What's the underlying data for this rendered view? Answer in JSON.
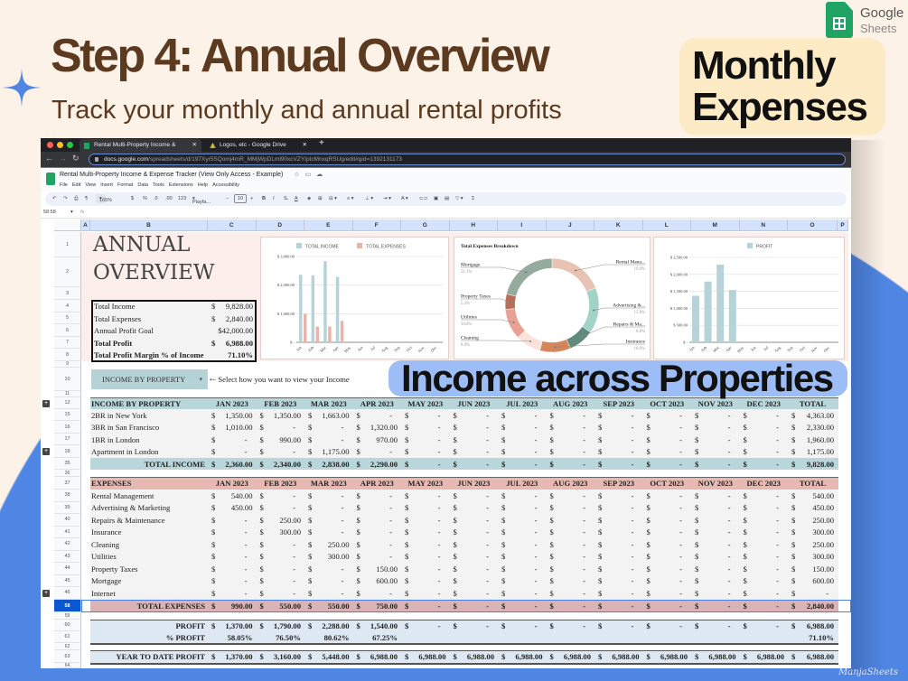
{
  "header": {
    "title": "Step 4: Annual Overview",
    "subtitle": "Track your monthly and annual rental profits",
    "logo": {
      "line1": "Google",
      "line2": "Sheets"
    }
  },
  "browser": {
    "tabs": [
      {
        "label": "Rental Multi-Property Income &",
        "icon": "sheets-icon"
      },
      {
        "label": "Logos, etc - Google Drive",
        "icon": "drive-icon"
      }
    ],
    "new_tab": "+",
    "url_host": "docs.google.com",
    "url_path": "/spreadsheets/d/197Xyr5SQomj4mR_MMjWpDLml90xcVZYIpIcMnxqRSUg/edit#gid=1392131173"
  },
  "doc": {
    "title": "Rental Multi-Property Income & Expense Tracker (View Only Access - Example)",
    "menu": [
      "File",
      "Edit",
      "View",
      "Insert",
      "Format",
      "Data",
      "Tools",
      "Extensions",
      "Help",
      "Accessibility"
    ]
  },
  "toolbar": {
    "zoom": "165%",
    "currency": "$",
    "percent": "%",
    "dec_less": ".0",
    "dec_more": ".00",
    "format": "123",
    "font": "Playfa...",
    "font_size": "10",
    "minus": "−",
    "plus": "+",
    "bold": "B",
    "italic": "I",
    "text_color": "A"
  },
  "formula_bar": {
    "cell_ref": "58:58",
    "fx": "fx"
  },
  "columns": [
    "A",
    "B",
    "C",
    "D",
    "E",
    "F",
    "G",
    "H",
    "I",
    "J",
    "K",
    "L",
    "M",
    "N",
    "O",
    "P"
  ],
  "rows": [
    "1",
    "2",
    "3",
    "4",
    "5",
    "6",
    "7",
    "8",
    "9",
    "10",
    "11",
    "12",
    "15",
    "16",
    "17",
    "18",
    "35",
    "36",
    "37",
    "38",
    "39",
    "40",
    "41",
    "42",
    "43",
    "44",
    "45",
    "46",
    "58",
    "59",
    "60",
    "61",
    "62",
    "63",
    "64"
  ],
  "overview": {
    "title_line1": "ANNUAL",
    "title_line2": "OVERVIEW",
    "summary": [
      {
        "label": "Total Income",
        "currency": "$",
        "value": "9,828.00",
        "bold": false
      },
      {
        "label": "Total Expenses",
        "currency": "$",
        "value": "2,840.00",
        "bold": false
      },
      {
        "label": "Annual Profit Goal",
        "currency": "",
        "value": "$42,000.00",
        "bold": false
      },
      {
        "label": "Total Profit",
        "currency": "$",
        "value": "6,988.00",
        "bold": true
      },
      {
        "label": "Total Profit Margin % of Income",
        "currency": "",
        "value": "71.10%",
        "bold": true
      }
    ]
  },
  "selector": {
    "value": "INCOME BY PROPERTY",
    "hint": "⇠ Select how you want to view your Income"
  },
  "chart_data": [
    {
      "type": "bar",
      "legend": [
        "TOTAL INCOME",
        "TOTAL EXPENSES"
      ],
      "legend_position": "top",
      "categories": [
        "Jan",
        "Feb",
        "Mar",
        "Apr",
        "May",
        "Jun",
        "Jul",
        "Aug",
        "Sep",
        "Oct",
        "Nov",
        "Dec"
      ],
      "series": [
        {
          "name": "TOTAL INCOME",
          "color": "#b5d3d8",
          "values": [
            2360,
            2340,
            2838,
            2290,
            0,
            0,
            0,
            0,
            0,
            0,
            0,
            0
          ]
        },
        {
          "name": "TOTAL EXPENSES",
          "color": "#eab3ab",
          "values": [
            990,
            550,
            550,
            750,
            0,
            0,
            0,
            0,
            0,
            0,
            0,
            0
          ]
        }
      ],
      "ylim": [
        0,
        3000
      ],
      "yticks": [
        {
          "value": 3000,
          "label": "$ 3,000.00"
        },
        {
          "value": 2000,
          "label": "$ 2,000.00"
        },
        {
          "value": 1000,
          "label": "$ 1,000.00"
        },
        {
          "value": 0,
          "label": "$ -"
        }
      ],
      "grid": true
    },
    {
      "type": "pie",
      "donut": true,
      "title": "Total Expenses Breakdown",
      "slices": [
        {
          "label": "Rental Mana...",
          "pct": "19.0%",
          "value": 19.0,
          "color": "#e8c2b3",
          "side": "right"
        },
        {
          "label": "Advertising &...",
          "pct": "15.8%",
          "value": 15.8,
          "color": "#a1d3c6",
          "side": "right"
        },
        {
          "label": "Repairs & Ma...",
          "pct": "8.8%",
          "value": 8.8,
          "color": "#618a7e",
          "side": "right"
        },
        {
          "label": "Insurance",
          "pct": "10.6%",
          "value": 10.6,
          "color": "#d4855a",
          "side": "right"
        },
        {
          "label": "Cleaning",
          "pct": "8.8%",
          "value": 8.8,
          "color": "#fbe2da",
          "side": "left"
        },
        {
          "label": "Utilities",
          "pct": "10.6%",
          "value": 10.6,
          "color": "#e9a194",
          "side": "left"
        },
        {
          "label": "Property Taxes",
          "pct": "5.3%",
          "value": 5.3,
          "color": "#b86e58",
          "side": "left"
        },
        {
          "label": "Mortgage",
          "pct": "21.1%",
          "value": 21.1,
          "color": "#94ab9d",
          "side": "left"
        }
      ]
    },
    {
      "type": "bar",
      "legend": [
        "PROFIT"
      ],
      "legend_position": "top",
      "categories": [
        "Jan",
        "Feb",
        "Mar",
        "Apr",
        "May",
        "Jun",
        "Jul",
        "Aug",
        "Sep",
        "Oct",
        "Nov",
        "Dec"
      ],
      "series": [
        {
          "name": "PROFIT",
          "color": "#b5d3d8",
          "values": [
            1370,
            1790,
            2288,
            1540,
            0,
            0,
            0,
            0,
            0,
            0,
            0,
            0
          ]
        }
      ],
      "ylim": [
        0,
        2500
      ],
      "yticks": [
        {
          "value": 2500,
          "label": "$ 2,500.00"
        },
        {
          "value": 2000,
          "label": "$ 2,000.00"
        },
        {
          "value": 1500,
          "label": "$ 1,500.00"
        },
        {
          "value": 1000,
          "label": "$ 1,000.00"
        },
        {
          "value": 500,
          "label": "$ 500.00"
        },
        {
          "value": 0,
          "label": "$ -"
        }
      ],
      "grid": true
    }
  ],
  "income": {
    "header": [
      "INCOME BY PROPERTY",
      "JAN 2023",
      "FEB 2023",
      "MAR 2023",
      "APR 2023",
      "MAY 2023",
      "JUN 2023",
      "JUL 2023",
      "AUG 2023",
      "SEP 2023",
      "OCT 2023",
      "NOV 2023",
      "DEC 2023",
      "TOTAL"
    ],
    "rows": [
      {
        "label": "2BR in New York",
        "values": [
          "1,350.00",
          "1,350.00",
          "1,663.00",
          "-",
          "-",
          "-",
          "-",
          "-",
          "-",
          "-",
          "-",
          "-",
          "4,363.00"
        ]
      },
      {
        "label": "3BR in San Francisco",
        "values": [
          "1,010.00",
          "-",
          "-",
          "1,320.00",
          "-",
          "-",
          "-",
          "-",
          "-",
          "-",
          "-",
          "-",
          "2,330.00"
        ]
      },
      {
        "label": "1BR in London",
        "values": [
          "-",
          "990.00",
          "-",
          "970.00",
          "-",
          "-",
          "-",
          "-",
          "-",
          "-",
          "-",
          "-",
          "1,960.00"
        ]
      },
      {
        "label": "Apartment in London",
        "values": [
          "-",
          "-",
          "1,175.00",
          "-",
          "-",
          "-",
          "-",
          "-",
          "-",
          "-",
          "-",
          "-",
          "1,175.00"
        ]
      }
    ],
    "total": {
      "label": "TOTAL INCOME",
      "values": [
        "2,360.00",
        "2,340.00",
        "2,838.00",
        "2,290.00",
        "-",
        "-",
        "-",
        "-",
        "-",
        "-",
        "-",
        "-",
        "9,828.00"
      ]
    }
  },
  "expenses": {
    "header": [
      "EXPENSES",
      "JAN 2023",
      "FEB 2023",
      "MAR 2023",
      "APR 2023",
      "MAY 2023",
      "JUN 2023",
      "JUL 2023",
      "AUG 2023",
      "SEP 2023",
      "OCT 2023",
      "NOV 2023",
      "DEC 2023",
      "TOTAL"
    ],
    "rows": [
      {
        "label": "Rental Management",
        "values": [
          "540.00",
          "-",
          "-",
          "-",
          "-",
          "-",
          "-",
          "-",
          "-",
          "-",
          "-",
          "-",
          "540.00"
        ]
      },
      {
        "label": "Advertising & Marketing",
        "values": [
          "450.00",
          "-",
          "-",
          "-",
          "-",
          "-",
          "-",
          "-",
          "-",
          "-",
          "-",
          "-",
          "450.00"
        ]
      },
      {
        "label": "Repairs & Maintenance",
        "values": [
          "-",
          "250.00",
          "-",
          "-",
          "-",
          "-",
          "-",
          "-",
          "-",
          "-",
          "-",
          "-",
          "250.00"
        ]
      },
      {
        "label": "Insurance",
        "values": [
          "-",
          "300.00",
          "-",
          "-",
          "-",
          "-",
          "-",
          "-",
          "-",
          "-",
          "-",
          "-",
          "300.00"
        ]
      },
      {
        "label": "Cleaning",
        "values": [
          "-",
          "-",
          "250.00",
          "-",
          "-",
          "-",
          "-",
          "-",
          "-",
          "-",
          "-",
          "-",
          "250.00"
        ]
      },
      {
        "label": "Utilities",
        "values": [
          "-",
          "-",
          "300.00",
          "-",
          "-",
          "-",
          "-",
          "-",
          "-",
          "-",
          "-",
          "-",
          "300.00"
        ]
      },
      {
        "label": "Property Taxes",
        "values": [
          "-",
          "-",
          "-",
          "150.00",
          "-",
          "-",
          "-",
          "-",
          "-",
          "-",
          "-",
          "-",
          "150.00"
        ]
      },
      {
        "label": "Mortgage",
        "values": [
          "-",
          "-",
          "-",
          "600.00",
          "-",
          "-",
          "-",
          "-",
          "-",
          "-",
          "-",
          "-",
          "600.00"
        ]
      },
      {
        "label": "Internet",
        "values": [
          "-",
          "-",
          "-",
          "-",
          "-",
          "-",
          "-",
          "-",
          "-",
          "-",
          "-",
          "-",
          "-"
        ]
      }
    ],
    "total": {
      "label": "TOTAL EXPENSES",
      "values": [
        "990.00",
        "550.00",
        "550.00",
        "750.00",
        "-",
        "-",
        "-",
        "-",
        "-",
        "-",
        "-",
        "-",
        "2,840.00"
      ]
    }
  },
  "profit": {
    "profit": {
      "label": "PROFIT",
      "values": [
        "1,370.00",
        "1,790.00",
        "2,288.00",
        "1,540.00",
        "-",
        "-",
        "-",
        "-",
        "-",
        "-",
        "-",
        "-",
        "6,988.00"
      ]
    },
    "pct": {
      "label": "% PROFIT",
      "values": [
        "58.05%",
        "76.50%",
        "80.62%",
        "67.25%",
        "",
        "",
        "",
        "",
        "",
        "",
        "",
        "",
        "71.10%"
      ]
    },
    "ytd": {
      "label": "YEAR TO DATE PROFIT",
      "values": [
        "1,370.00",
        "3,160.00",
        "5,448.00",
        "6,988.00",
        "6,988.00",
        "6,988.00",
        "6,988.00",
        "6,988.00",
        "6,988.00",
        "6,988.00",
        "6,988.00",
        "6,988.00",
        "6,988.00"
      ]
    }
  },
  "callouts": {
    "income": {
      "line1": "Income across",
      "line2": "Properties",
      "color": "#9dbdf7"
    },
    "expenses": {
      "line1": "Monthly",
      "line2": "Expenses",
      "color": "#fdebc6"
    }
  },
  "watermark": "ManjaSheets",
  "colors": {
    "brand_brown": "#5b3a1f",
    "blue": "#4f86e3",
    "income_teal": "#b9d6da",
    "expense_pink": "#e6bab3",
    "profit_blue": "#dde8f3"
  }
}
